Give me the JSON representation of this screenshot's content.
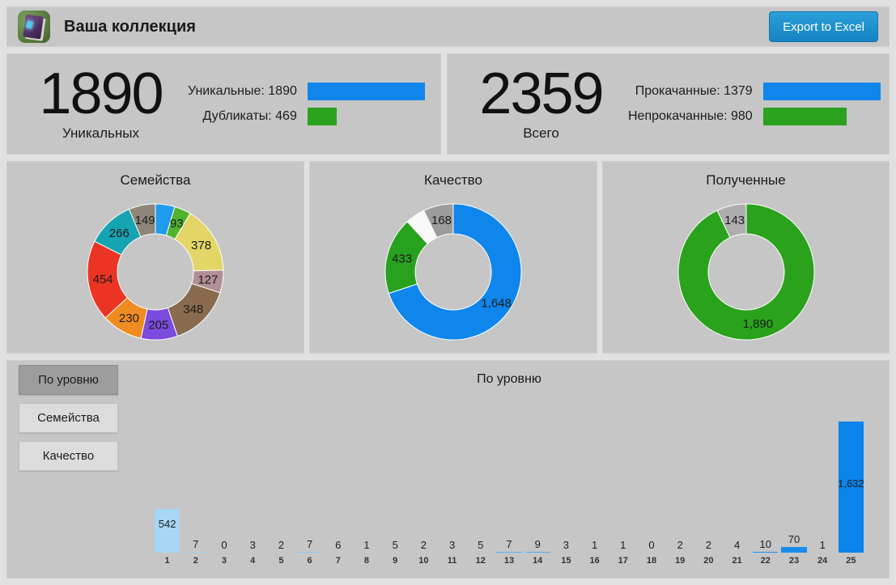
{
  "header": {
    "title": "Ваша коллекция",
    "export_label": "Export to Excel",
    "icon": "collection-book-icon",
    "accent_blue": "#1086ec",
    "accent_green": "#2aa21e"
  },
  "stats": [
    {
      "big": "1890",
      "caption": "Уникальных",
      "rows": [
        {
          "label": "Уникальные: 1890",
          "value": 1890,
          "max": 1890,
          "color": "#1086ec"
        },
        {
          "label": "Дубликаты: 469",
          "value": 469,
          "max": 1890,
          "color": "#2aa21e"
        }
      ]
    },
    {
      "big": "2359",
      "caption": "Всего",
      "rows": [
        {
          "label": "Прокачанные: 1379",
          "value": 1379,
          "max": 1379,
          "color": "#1086ec"
        },
        {
          "label": "Непрокачанные: 980",
          "value": 980,
          "max": 1379,
          "color": "#2aa21e"
        }
      ]
    }
  ],
  "tabs": [
    {
      "label": "По уровню",
      "active": true
    },
    {
      "label": "Семейства",
      "active": false
    },
    {
      "label": "Качество",
      "active": false
    }
  ],
  "chart_data": [
    {
      "type": "pie",
      "title": "Семейства",
      "donut": true,
      "segments": [
        {
          "label": "",
          "value": 109,
          "color": "#1f9ced"
        },
        {
          "label": "93",
          "value": 93,
          "color": "#4fb32e"
        },
        {
          "label": "378",
          "value": 378,
          "color": "#e3d666"
        },
        {
          "label": "127",
          "value": 127,
          "color": "#b28e96"
        },
        {
          "label": "348",
          "value": 348,
          "color": "#8a6b50"
        },
        {
          "label": "205",
          "value": 205,
          "color": "#7b4be0"
        },
        {
          "label": "230",
          "value": 230,
          "color": "#f08b21"
        },
        {
          "label": "454",
          "value": 454,
          "color": "#ec3424"
        },
        {
          "label": "266",
          "value": 266,
          "color": "#16a3b2"
        },
        {
          "label": "149",
          "value": 149,
          "color": "#8e8779"
        }
      ]
    },
    {
      "type": "pie",
      "title": "Качество",
      "donut": true,
      "segments": [
        {
          "label": "1,648",
          "value": 1648,
          "color": "#0e86ec"
        },
        {
          "label": "433",
          "value": 433,
          "color": "#28a11e"
        },
        {
          "label": "",
          "value": 110,
          "color": "#f8f8f8"
        },
        {
          "label": "168",
          "value": 168,
          "color": "#9c9c9c"
        }
      ]
    },
    {
      "type": "pie",
      "title": "Полученные",
      "donut": true,
      "segments": [
        {
          "label": "1,890",
          "value": 1890,
          "color": "#2aa21c"
        },
        {
          "label": "143",
          "value": 143,
          "color": "#aeaeae"
        }
      ]
    },
    {
      "type": "bar",
      "title": "По уровню",
      "categories": [
        "1",
        "2",
        "3",
        "4",
        "5",
        "6",
        "7",
        "8",
        "9",
        "10",
        "11",
        "12",
        "13",
        "14",
        "15",
        "16",
        "17",
        "18",
        "19",
        "20",
        "21",
        "22",
        "23",
        "24",
        "25"
      ],
      "values": [
        542,
        7,
        0,
        3,
        2,
        7,
        6,
        1,
        5,
        2,
        3,
        5,
        7,
        9,
        3,
        1,
        1,
        0,
        2,
        2,
        4,
        10,
        70,
        1,
        1632
      ],
      "value_labels": [
        "542",
        "7",
        "0",
        "3",
        "2",
        "7",
        "6",
        "1",
        "5",
        "2",
        "3",
        "5",
        "7",
        "9",
        "3",
        "1",
        "1",
        "0",
        "2",
        "2",
        "4",
        "10",
        "70",
        "1",
        "1,632"
      ],
      "ylim": [
        0,
        1632
      ],
      "grid": false,
      "legend": false,
      "bar_color_start": "#a6d7f4",
      "bar_color_end": "#0b84ec"
    }
  ]
}
